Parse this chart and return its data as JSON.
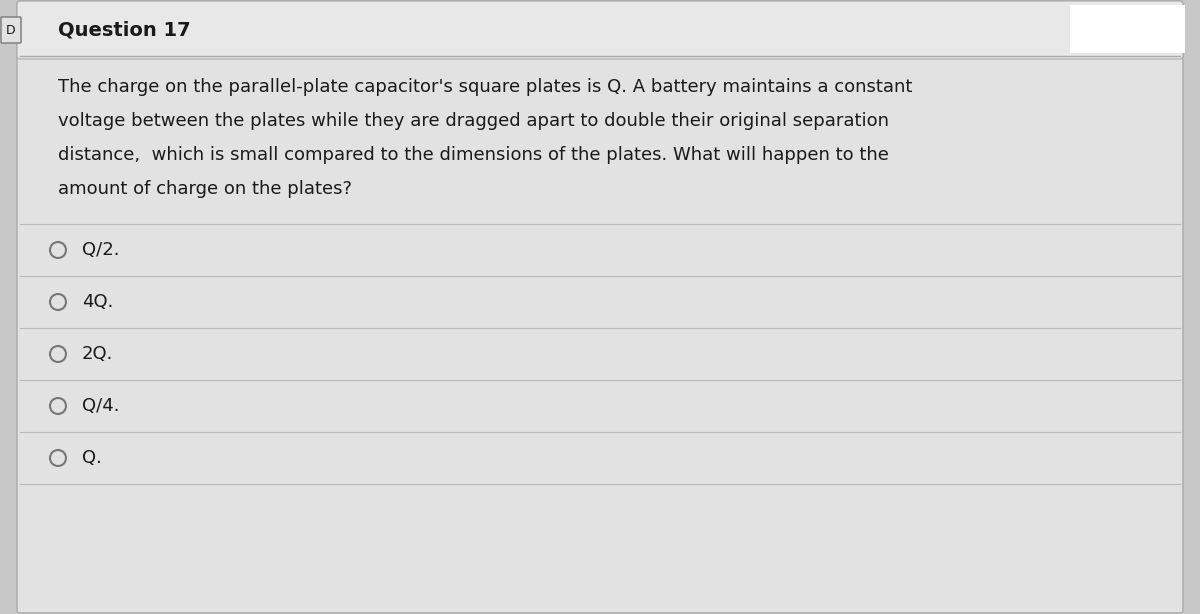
{
  "title": "Question 17",
  "title_prefix": "D",
  "question_text_lines": [
    "The charge on the parallel-plate capacitor's square plates is Q. A battery maintains a constant",
    "voltage between the plates while they are dragged apart to double their original separation",
    "distance,  which is small compared to the dimensions of the plates. What will happen to the",
    "amount of charge on the plates?"
  ],
  "options": [
    "Q/2.",
    "4Q.",
    "2Q.",
    "Q/4.",
    "Q."
  ],
  "bg_color": "#c8c8c8",
  "panel_color": "#e2e2e2",
  "header_bg_color": "#e8e8e8",
  "text_color": "#1a1a1a",
  "title_fontsize": 14,
  "question_fontsize": 13,
  "option_fontsize": 13,
  "line_color": "#b8b8b8",
  "circle_color": "#777777",
  "white_box_color": "#ffffff",
  "header_line_color": "#aaaaaa"
}
